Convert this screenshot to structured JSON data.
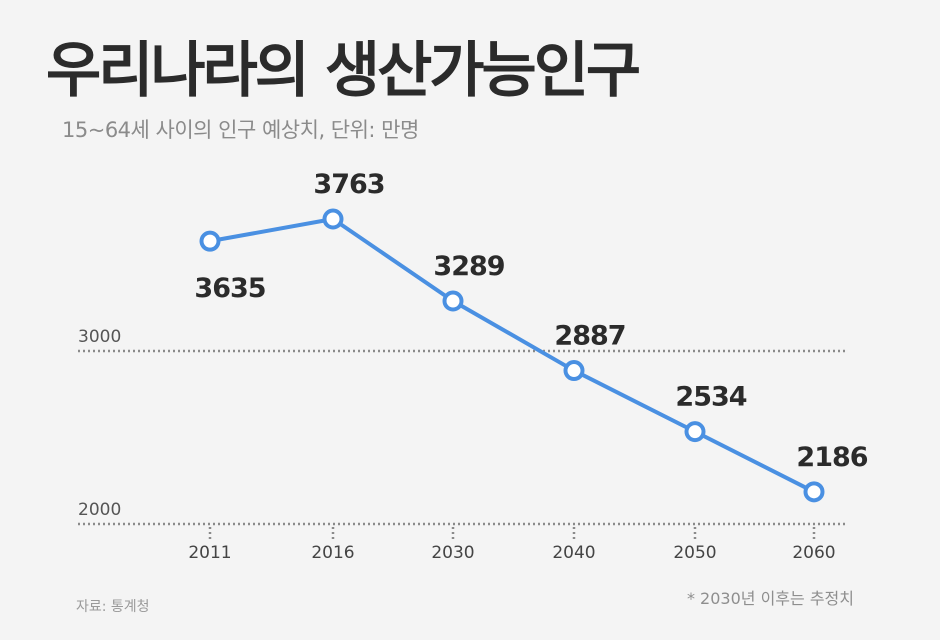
{
  "chart_data": {
    "type": "line",
    "title": "우리나라의 생산가능인구",
    "subtitle": "15~64세 사이의 인구 예상치, 단위: 만명",
    "categories": [
      "2011",
      "2016",
      "2030",
      "2040",
      "2050",
      "2060"
    ],
    "series": [
      {
        "values": [
          3635,
          3763,
          3289,
          2887,
          2534,
          2186
        ]
      }
    ],
    "data_labels": [
      "3635",
      "3763",
      "3289",
      "2887",
      "2534",
      "2186"
    ],
    "y_ticks": [
      2000,
      3000
    ],
    "y_tick_labels": [
      "2000",
      "3000"
    ],
    "ylim": [
      2000,
      3900
    ],
    "grid": "dotted horizontal lines at 2000 and 3000",
    "line_color": "#4a90e2",
    "marker_fill": "#ffffff"
  },
  "footer": {
    "source": "자료: 통계청",
    "note": "* 2030년 이후는 추정치"
  }
}
